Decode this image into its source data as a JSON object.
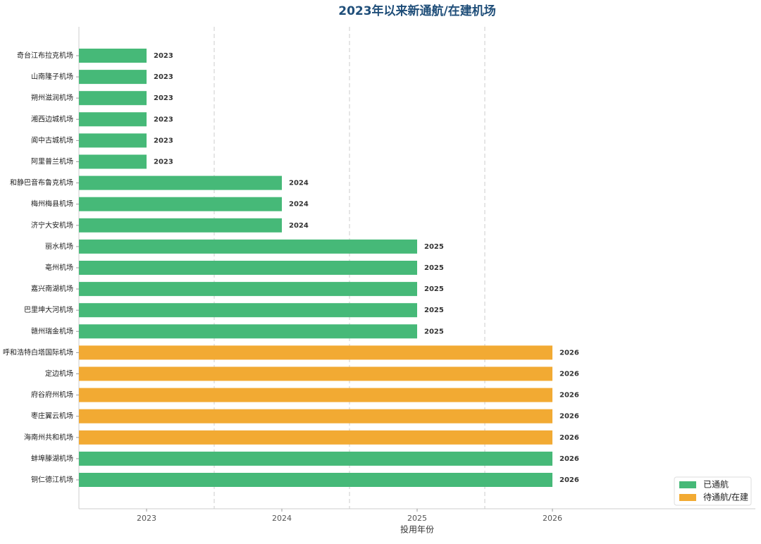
{
  "chart_data": {
    "type": "barh",
    "title": "2023年以来新通航/在建机场",
    "xlabel": "投用年份",
    "categories": [
      "奇台江布拉克机场",
      "山南隆子机场",
      "朔州滋润机场",
      "湘西边城机场",
      "阆中古城机场",
      "阿里普兰机场",
      "和静巴音布鲁克机场",
      "梅州梅县机场",
      "济宁大安机场",
      "丽水机场",
      "亳州机场",
      "嘉兴南湖机场",
      "巴里坤大河机场",
      "赣州瑞金机场",
      "呼和浩特白塔国际机场",
      "定边机场",
      "府谷府州机场",
      "枣庄翼云机场",
      "海南州共和机场",
      "蚌埠滕湖机场",
      "铜仁德江机场"
    ],
    "series": [
      {
        "name": "已通航",
        "color": "#46b978",
        "values": [
          2023,
          2023,
          2023,
          2023,
          2023,
          2023,
          2024,
          2024,
          2024,
          2025,
          2025,
          2025,
          2025,
          2025,
          null,
          null,
          null,
          null,
          null,
          2026,
          2026
        ]
      },
      {
        "name": "待通航/在建",
        "color": "#f2aa33",
        "values": [
          null,
          null,
          null,
          null,
          null,
          null,
          null,
          null,
          null,
          null,
          null,
          null,
          null,
          null,
          2026,
          2026,
          2026,
          2026,
          2026,
          null,
          null
        ]
      }
    ],
    "xlim": [
      2022.5,
      2027.5
    ],
    "xticks": [
      2023,
      2024,
      2025,
      2026
    ],
    "dashed_lines": [
      2023.5,
      2024.5,
      2025.5
    ],
    "legend": "lower right"
  }
}
